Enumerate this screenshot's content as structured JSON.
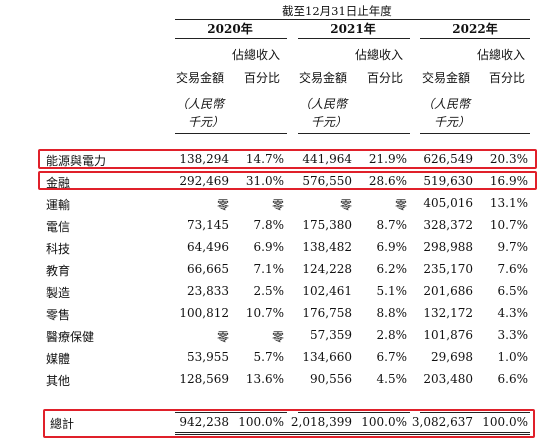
{
  "period_header": "截至12月31日止年度",
  "years": [
    "2020年",
    "2021年",
    "2022年"
  ],
  "col_headers": {
    "amount": "交易金額",
    "pct_line1": "佔總收入",
    "pct_line2": "百分比",
    "unit_line1": "（人民幣",
    "unit_line2": "千元）"
  },
  "rows": [
    {
      "label": "能源與電力",
      "v": [
        "138,294",
        "14.7%",
        "441,964",
        "21.9%",
        "626,549",
        "20.3%"
      ]
    },
    {
      "label": "金融",
      "v": [
        "292,469",
        "31.0%",
        "576,550",
        "28.6%",
        "519,630",
        "16.9%"
      ]
    },
    {
      "label": "運輸",
      "v": [
        "零",
        "零",
        "零",
        "零",
        "405,016",
        "13.1%"
      ]
    },
    {
      "label": "電信",
      "v": [
        "73,145",
        "7.8%",
        "175,380",
        "8.7%",
        "328,372",
        "10.7%"
      ]
    },
    {
      "label": "科技",
      "v": [
        "64,496",
        "6.9%",
        "138,482",
        "6.9%",
        "298,988",
        "9.7%"
      ]
    },
    {
      "label": "教育",
      "v": [
        "66,665",
        "7.1%",
        "124,228",
        "6.2%",
        "235,170",
        "7.6%"
      ]
    },
    {
      "label": "製造",
      "v": [
        "23,833",
        "2.5%",
        "102,461",
        "5.1%",
        "201,686",
        "6.5%"
      ]
    },
    {
      "label": "零售",
      "v": [
        "100,812",
        "10.7%",
        "176,758",
        "8.8%",
        "132,172",
        "4.3%"
      ]
    },
    {
      "label": "醫療保健",
      "v": [
        "零",
        "零",
        "57,359",
        "2.8%",
        "101,876",
        "3.3%"
      ]
    },
    {
      "label": "媒體",
      "v": [
        "53,955",
        "5.7%",
        "134,660",
        "6.7%",
        "29,698",
        "1.0%"
      ]
    },
    {
      "label": "其他",
      "v": [
        "128,569",
        "13.6%",
        "90,556",
        "4.5%",
        "203,480",
        "6.6%"
      ]
    }
  ],
  "total": {
    "label": "總計",
    "v": [
      "942,238",
      "100.0%",
      "2,018,399",
      "100.0%",
      "3,082,637",
      "100.0%"
    ]
  },
  "highlight_color": "#e0202a"
}
